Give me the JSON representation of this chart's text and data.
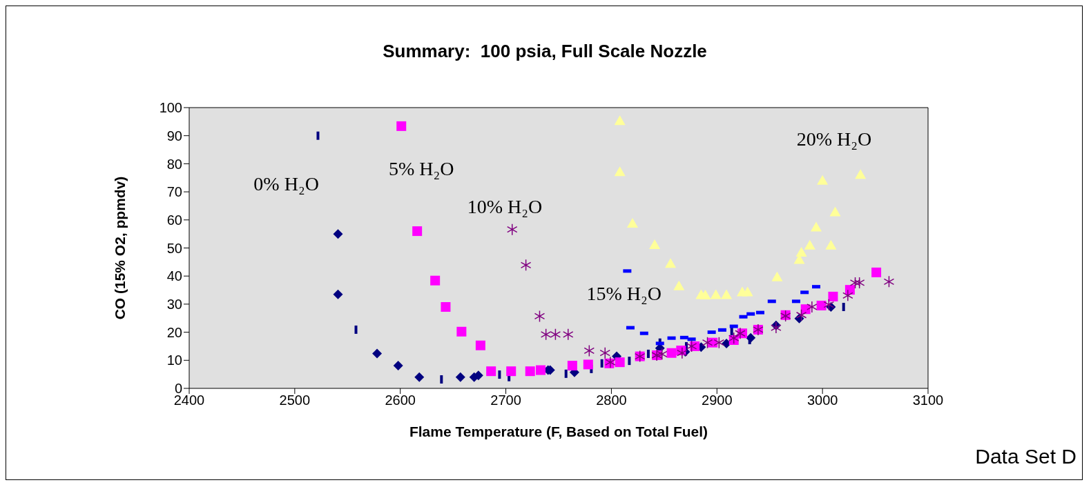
{
  "chart_data": {
    "type": "scatter",
    "title": "Summary:  100 psia, Full Scale Nozzle",
    "xlabel": "Flame Temperature (F, Based on Total Fuel)",
    "ylabel": "CO (15% O2, ppmdv)",
    "xlim": [
      2400,
      3100
    ],
    "xticks": [
      2400,
      2500,
      2600,
      2700,
      2800,
      2900,
      3000,
      3100
    ],
    "ylim": [
      0,
      100
    ],
    "yticks": [
      0,
      10,
      20,
      30,
      40,
      50,
      60,
      70,
      80,
      90,
      100
    ],
    "grid": false,
    "series": [
      {
        "name": "0% H₂O",
        "color": "#000080",
        "marker": "diamond",
        "x": [
          2541,
          2541,
          2578,
          2598,
          2618,
          2657,
          2670,
          2674,
          2740,
          2742,
          2765,
          2805,
          2846,
          2870,
          2885,
          2909,
          2932,
          2956,
          2978,
          3008
        ],
        "values": [
          55,
          33.5,
          12.4,
          8.1,
          4,
          4,
          4,
          4.6,
          6.5,
          6.5,
          5.7,
          11.4,
          14.3,
          13,
          14.7,
          16,
          18,
          22.4,
          24.9,
          29
        ]
      },
      {
        "color": "#000080",
        "x": [
          2522,
          2558,
          2639,
          2694,
          2703,
          2757,
          2781,
          2791,
          2817,
          2835,
          2846,
          2871,
          2914,
          2931,
          3020
        ],
        "values": [
          90,
          20.9,
          3.2,
          4.9,
          4,
          5.2,
          6.9,
          8.9,
          9.8,
          12.3,
          16.3,
          15,
          20.4,
          17.2,
          29
        ]
      },
      {
        "name": "15% H₂O",
        "color": "#0000ff",
        "x": [
          2815,
          2818,
          2831,
          2846,
          2857,
          2869,
          2876,
          2895,
          2905,
          2916,
          2925,
          2932,
          2941,
          2952,
          2975,
          2983,
          2994
        ],
        "values": [
          41.8,
          21.6,
          19.6,
          16,
          17.9,
          18.1,
          17.5,
          20,
          20.8,
          22.1,
          25.5,
          26.5,
          27,
          31,
          31,
          34.2,
          36.2
        ]
      },
      {
        "name": "5% H₂O",
        "color": "#ff00ff",
        "marker": "square",
        "x": [
          2601,
          2616,
          2633,
          2643,
          2658,
          2676,
          2686,
          2705,
          2723,
          2733,
          2763,
          2778,
          2798,
          2808,
          2827,
          2843,
          2857,
          2866,
          2879,
          2896,
          2916,
          2924,
          2939,
          2965,
          2984,
          2999,
          3010,
          3026,
          3051
        ],
        "values": [
          93.4,
          56,
          38.4,
          29,
          20.2,
          15.3,
          6.1,
          6.1,
          6.1,
          6.5,
          8.1,
          8.5,
          8.9,
          9.3,
          11.4,
          11.8,
          12.6,
          13.5,
          15,
          16.3,
          17.2,
          19.6,
          20.9,
          26.1,
          28.2,
          29.5,
          32.7,
          35.1,
          41.3
        ]
      },
      {
        "name": "10% H₂O",
        "color": "#800080",
        "marker": "cross",
        "x": [
          2706,
          2719,
          2732,
          2738,
          2747,
          2759,
          2779,
          2794,
          2799,
          2827,
          2843,
          2848,
          2867,
          2876,
          2891,
          2902,
          2916,
          2922,
          2939,
          2956,
          2965,
          2980,
          2990,
          3006,
          3024,
          3031,
          3035,
          3063
        ],
        "values": [
          56.6,
          43.9,
          25.7,
          19.2,
          19.2,
          19.2,
          13.4,
          12.6,
          9.3,
          11.4,
          11.8,
          12.2,
          12.6,
          15,
          16.3,
          16.3,
          17.9,
          19.6,
          20.9,
          21.6,
          25.8,
          26.1,
          29,
          29.8,
          33.1,
          37.6,
          37.6,
          38
        ]
      },
      {
        "name": "20% H₂O",
        "color": "#ffff99",
        "marker": "triangle",
        "x": [
          2808,
          2808,
          2820,
          2841,
          2856,
          2864,
          2885,
          2889,
          2899,
          2909,
          2924,
          2929,
          2957,
          2978,
          2980,
          2988,
          2994,
          3008,
          3012,
          3000,
          3036
        ],
        "values": [
          95.3,
          77.1,
          58.7,
          51.1,
          44.4,
          36.4,
          33.3,
          33.2,
          33.3,
          33.3,
          34.3,
          34.3,
          39.6,
          45.8,
          48.4,
          50.9,
          57.4,
          50.9,
          62.8,
          74,
          76.1
        ]
      }
    ],
    "annotations": [
      "Data Set D"
    ]
  }
}
